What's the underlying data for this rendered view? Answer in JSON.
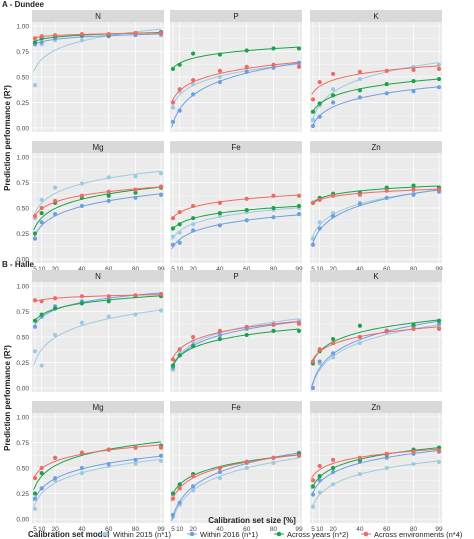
{
  "figure": {
    "x_label": "Calibration set size [%]",
    "y_label": "Prediction performance (R²)",
    "legend_title": "Calibration set model",
    "legend_position": "bottom"
  },
  "colors": {
    "within_2015": "#9ecae1",
    "within_2016": "#6f9fe3",
    "across_years": "#1aa34a",
    "across_env": "#ef6b64",
    "panel_bg": "#ebebeb",
    "strip_bg": "#d9d9d9",
    "grid": "#ffffff"
  },
  "legend_items": [
    {
      "key": "within_2015",
      "label": "Within 2015 (n*1)"
    },
    {
      "key": "within_2016",
      "label": "Within 2016 (n*1)"
    },
    {
      "key": "across_years",
      "label": "Across years (n*2)"
    },
    {
      "key": "across_env",
      "label": "Across environments (n*4)"
    }
  ],
  "chart_data": [
    {
      "section": "A - Dundee",
      "type": "scatter",
      "x_ticks": [
        5,
        10,
        20,
        40,
        60,
        80,
        99
      ],
      "y_ticks": [
        "0.00",
        "0.25",
        "0.50",
        "0.75",
        "1.00"
      ],
      "ylim": [
        0,
        1
      ],
      "panels": [
        {
          "title": "N",
          "series": {
            "within_2015": [
              0.42,
              0.82,
              0.86,
              0.86,
              0.9,
              0.92,
              0.91
            ],
            "within_2016": [
              0.82,
              0.84,
              0.88,
              0.9,
              0.9,
              0.91,
              0.92
            ],
            "across_years": [
              0.84,
              0.88,
              0.9,
              0.91,
              0.91,
              0.93,
              0.94
            ],
            "across_env": [
              0.88,
              0.9,
              0.91,
              0.92,
              0.92,
              0.93,
              0.93
            ]
          }
        },
        {
          "title": "P",
          "series": {
            "within_2015": [
              0.2,
              0.36,
              0.43,
              0.5,
              0.56,
              0.6,
              0.62
            ],
            "within_2016": [
              0.06,
              0.17,
              0.33,
              0.45,
              0.55,
              0.59,
              0.64
            ],
            "across_years": [
              0.58,
              0.62,
              0.73,
              0.72,
              0.76,
              0.78,
              0.78
            ],
            "across_env": [
              0.25,
              0.38,
              0.47,
              0.56,
              0.6,
              0.62,
              0.6
            ]
          }
        },
        {
          "title": "K",
          "series": {
            "within_2015": [
              0.08,
              0.22,
              0.38,
              0.48,
              0.56,
              0.6,
              0.62
            ],
            "within_2016": [
              0.02,
              0.11,
              0.25,
              0.3,
              0.34,
              0.36,
              0.4
            ],
            "across_years": [
              0.16,
              0.24,
              0.32,
              0.37,
              0.43,
              0.46,
              0.48
            ],
            "across_env": [
              0.28,
              0.45,
              0.53,
              0.55,
              0.56,
              0.57,
              0.58
            ]
          }
        },
        {
          "title": "Mg",
          "series": {
            "within_2015": [
              0.4,
              0.58,
              0.7,
              0.74,
              0.8,
              0.81,
              0.84
            ],
            "within_2016": [
              0.2,
              0.36,
              0.44,
              0.52,
              0.57,
              0.6,
              0.63
            ],
            "across_years": [
              0.25,
              0.45,
              0.55,
              0.6,
              0.62,
              0.65,
              0.7
            ],
            "across_env": [
              0.42,
              0.5,
              0.57,
              0.62,
              0.66,
              0.68,
              0.71
            ]
          }
        },
        {
          "title": "Fe",
          "series": {
            "within_2015": [
              0.22,
              0.26,
              0.34,
              0.42,
              0.46,
              0.48,
              0.5
            ],
            "within_2016": [
              0.14,
              0.16,
              0.28,
              0.33,
              0.38,
              0.41,
              0.44
            ],
            "across_years": [
              0.3,
              0.34,
              0.4,
              0.45,
              0.48,
              0.5,
              0.52
            ],
            "across_env": [
              0.4,
              0.46,
              0.52,
              0.55,
              0.59,
              0.62,
              0.62
            ]
          }
        },
        {
          "title": "Zn",
          "series": {
            "within_2015": [
              0.2,
              0.36,
              0.45,
              0.55,
              0.6,
              0.64,
              0.66
            ],
            "within_2016": [
              0.14,
              0.3,
              0.42,
              0.54,
              0.6,
              0.63,
              0.66
            ],
            "across_years": [
              0.55,
              0.6,
              0.64,
              0.65,
              0.7,
              0.72,
              0.7
            ],
            "across_env": [
              0.55,
              0.58,
              0.62,
              0.63,
              0.67,
              0.68,
              0.68
            ]
          }
        }
      ]
    },
    {
      "section": "B - Halle",
      "type": "scatter",
      "x_ticks": [
        5,
        10,
        20,
        40,
        60,
        80,
        99
      ],
      "y_ticks": [
        "0.00",
        "0.25",
        "0.50",
        "0.75",
        "1.00"
      ],
      "ylim": [
        0,
        1
      ],
      "panels": [
        {
          "title": "N",
          "series": {
            "within_2015": [
              0.36,
              0.22,
              0.52,
              0.64,
              0.7,
              0.72,
              0.76
            ],
            "within_2016": [
              0.6,
              0.7,
              0.8,
              0.85,
              0.88,
              0.9,
              0.92
            ],
            "across_years": [
              0.66,
              0.72,
              0.78,
              0.83,
              0.85,
              0.9,
              0.9
            ],
            "across_env": [
              0.86,
              0.85,
              0.88,
              0.9,
              0.9,
              0.91,
              0.92
            ]
          }
        },
        {
          "title": "P",
          "series": {
            "within_2015": [
              0.18,
              0.36,
              0.46,
              0.55,
              0.6,
              0.64,
              0.66
            ],
            "within_2016": [
              0.2,
              0.32,
              0.42,
              0.52,
              0.58,
              0.62,
              0.64
            ],
            "across_years": [
              0.22,
              0.32,
              0.41,
              0.48,
              0.52,
              0.56,
              0.56
            ],
            "across_env": [
              0.28,
              0.38,
              0.5,
              0.56,
              0.6,
              0.62,
              0.63
            ]
          }
        },
        {
          "title": "K",
          "series": {
            "within_2015": [
              0.0,
              0.24,
              0.3,
              0.44,
              0.54,
              0.58,
              0.6
            ],
            "within_2016": [
              0.0,
              0.26,
              0.34,
              0.5,
              0.56,
              0.6,
              0.63
            ],
            "across_years": [
              0.24,
              0.36,
              0.48,
              0.61,
              0.56,
              0.62,
              0.66
            ],
            "across_env": [
              0.26,
              0.38,
              0.44,
              0.5,
              0.56,
              0.58,
              0.58
            ]
          }
        },
        {
          "title": "Mg",
          "series": {
            "within_2015": [
              0.1,
              0.3,
              0.38,
              0.45,
              0.52,
              0.54,
              0.57
            ],
            "within_2016": [
              0.2,
              0.3,
              0.4,
              0.5,
              0.54,
              0.58,
              0.62
            ],
            "across_years": [
              0.25,
              0.45,
              0.6,
              0.65,
              0.68,
              0.7,
              0.72
            ],
            "across_env": [
              0.4,
              0.5,
              0.6,
              0.65,
              0.68,
              0.7,
              0.7
            ]
          }
        },
        {
          "title": "Fe",
          "series": {
            "within_2015": [
              0.02,
              0.14,
              0.28,
              0.4,
              0.5,
              0.55,
              0.62
            ],
            "within_2016": [
              0.04,
              0.16,
              0.32,
              0.46,
              0.55,
              0.6,
              0.65
            ],
            "across_years": [
              0.25,
              0.34,
              0.44,
              0.5,
              0.56,
              0.6,
              0.64
            ],
            "across_env": [
              0.2,
              0.3,
              0.42,
              0.5,
              0.56,
              0.6,
              0.62
            ]
          }
        },
        {
          "title": "Zn",
          "series": {
            "within_2015": [
              0.12,
              0.26,
              0.34,
              0.44,
              0.5,
              0.54,
              0.56
            ],
            "within_2016": [
              0.24,
              0.38,
              0.46,
              0.56,
              0.6,
              0.64,
              0.66
            ],
            "across_years": [
              0.32,
              0.42,
              0.5,
              0.58,
              0.63,
              0.68,
              0.7
            ],
            "across_env": [
              0.38,
              0.52,
              0.58,
              0.6,
              0.64,
              0.66,
              0.67
            ]
          }
        }
      ]
    }
  ]
}
